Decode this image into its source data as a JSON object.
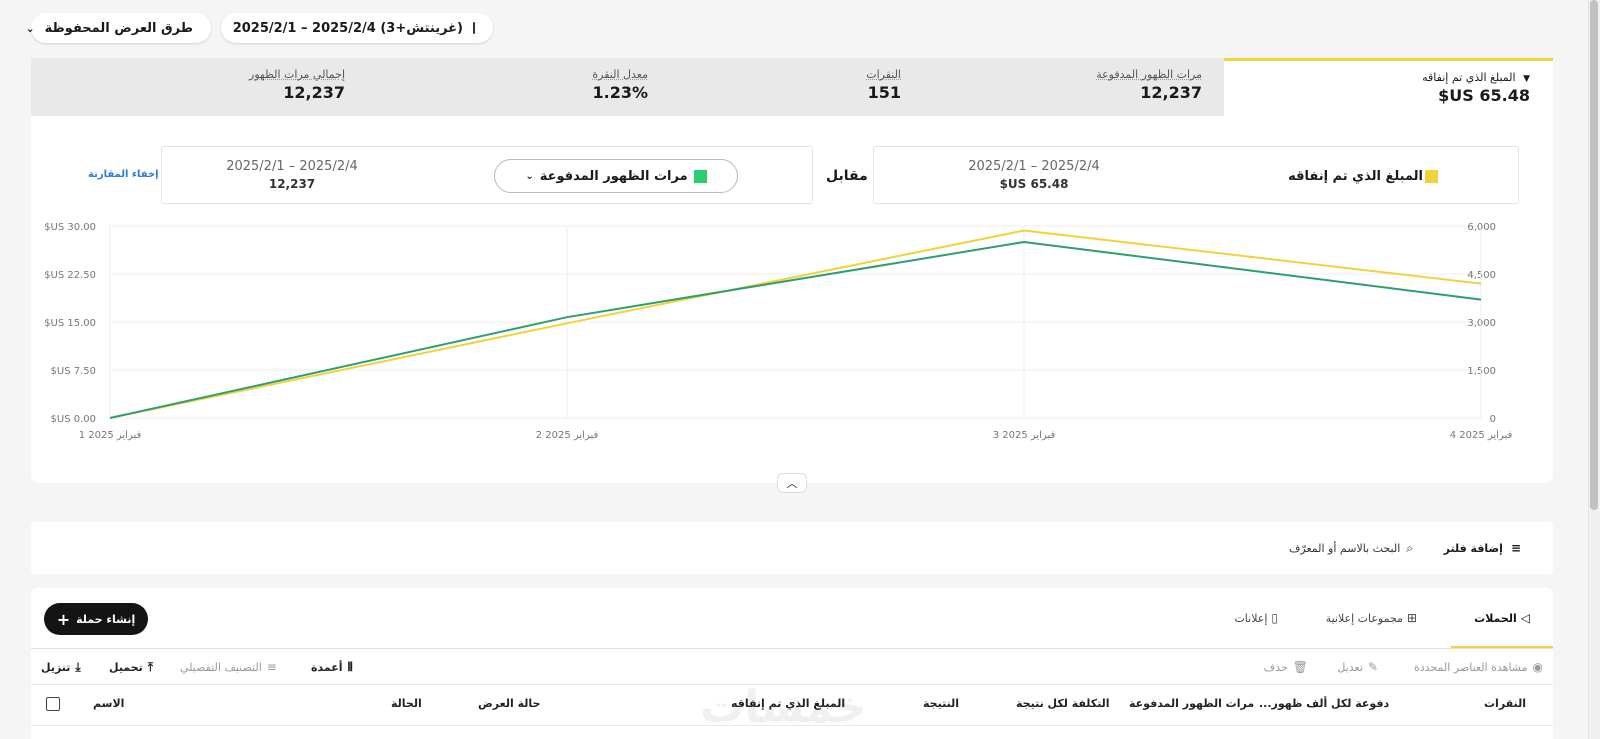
{
  "top": {
    "saved_views_label": "طرق العرض المحفوظة",
    "chevron_glyph": "⌄",
    "date_range": "2025/2/1 – 2025/2/4 (غرينتش+3)"
  },
  "metrics": [
    {
      "label": "المبلغ الذي تم إنفاقه",
      "value": "$US 65.48",
      "active": true,
      "arrow": "▼"
    },
    {
      "label": "مرات الظهور المدفوعة",
      "value": "12,237"
    },
    {
      "label": "النقرات",
      "value": "151"
    },
    {
      "label": "معدل النقرة",
      "value": "1.23%"
    },
    {
      "label": "إجمالي مرات الظهور",
      "value": "12,237"
    }
  ],
  "comparison": {
    "primary": {
      "metric": "المبلغ الذي تم إنفاقه",
      "date": "2025/2/1 – 2025/2/4",
      "value": "$US 65.48",
      "color": "#f0d23a"
    },
    "vs_label": "مقابل",
    "secondary": {
      "metric": "مرات الظهور المدفوعة",
      "date": "2025/2/1 – 2025/2/4",
      "value": "12,237",
      "color": "#2e9e6e"
    },
    "hide_label": "إخفاء المقارنة"
  },
  "chart_data": {
    "type": "line",
    "x": [
      "1 فبراير 2025",
      "2 فبراير 2025",
      "3 فبراير 2025",
      "4 فبراير 2025"
    ],
    "y_left_ticks": [
      "$US 0.00",
      "$US 7.50",
      "$US 15.00",
      "$US 22.50",
      "$US 30.00"
    ],
    "y_left_range": [
      0,
      30
    ],
    "y_right_ticks": [
      "0",
      "1,500",
      "3,000",
      "4,500",
      "6,000"
    ],
    "y_right_range": [
      0,
      6000
    ],
    "series": [
      {
        "axis": "left",
        "values": [
          0.0,
          14.8,
          29.3,
          21.0
        ],
        "color": "#f0d23a"
      },
      {
        "axis": "right",
        "values": [
          0,
          3150,
          5500,
          3700
        ],
        "color": "#2e9e6e"
      }
    ],
    "grid": true
  },
  "filters": {
    "add_filter": "إضافة فلتر",
    "search_placeholder": "البحث بالاسم أو المعرّف"
  },
  "table": {
    "create_button": "إنشاء حملة",
    "tabs": [
      {
        "label": "الحملات",
        "icon": "megaphone-icon",
        "active": true
      },
      {
        "label": "مجموعات إعلانية",
        "icon": "grid-icon"
      },
      {
        "label": "إعلانات",
        "icon": "ad-icon"
      }
    ],
    "actions_left": [
      {
        "label": "تنزيل",
        "icon": "download-icon"
      },
      {
        "label": "تحميل",
        "icon": "upload-icon"
      },
      {
        "label": "التصنيف التفصيلي",
        "icon": "breakdown-icon"
      },
      {
        "label": "أعمدة",
        "icon": "columns-icon"
      }
    ],
    "actions_right": [
      {
        "label": "مشاهدة العناصر المحددة",
        "icon": "eye-icon"
      },
      {
        "label": "تعديل",
        "icon": "pencil-icon"
      },
      {
        "label": "حذف",
        "icon": "trash-icon"
      }
    ],
    "columns": [
      "الاسم",
      "الحالة",
      "حالة العرض",
      "المبلغ الذي تم إنفاقه",
      "النتيجة",
      "التكلفة لكل نتيجة",
      "مرات الظهور المدفوعة",
      "...دفوعة لكل ألف ظهور",
      "النقرات"
    ]
  },
  "watermark": "خمسات"
}
